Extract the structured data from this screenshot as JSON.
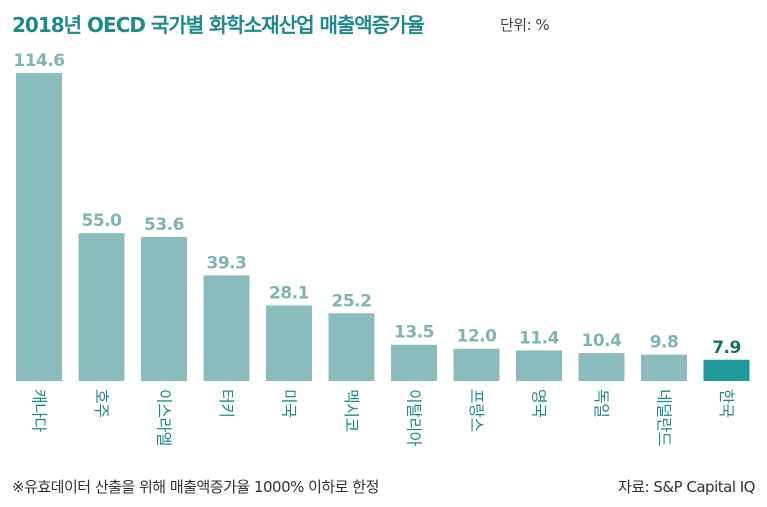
{
  "title": "2018년 OECD 국가별 화학소재산업 매출액증가율",
  "unit": "단위: %",
  "note": "※유효데이터 산출을 위해 매출액증가율 1000% 이하로 한정",
  "source": "자료: S&P Capital IQ",
  "colors": {
    "bar": "#8bbcbd",
    "bar_highlight": "#1f9999",
    "value_label": "#7fb3b4",
    "value_label_highlight": "#15706f",
    "title": "#1f8a8c",
    "category_label": "#1f8a8c"
  },
  "chart_data": {
    "type": "bar",
    "title": "2018년 OECD 국가별 화학소재산업 매출액증가율",
    "unit": "%",
    "categories": [
      "캐나다",
      "호주",
      "이스라엘",
      "터키",
      "미국",
      "멕시코",
      "이탈리아",
      "프랑스",
      "영국",
      "독일",
      "네덜란드",
      "한국"
    ],
    "values": [
      114.6,
      55.0,
      53.6,
      39.3,
      28.1,
      25.2,
      13.5,
      12.0,
      11.4,
      10.4,
      9.8,
      7.9
    ],
    "value_labels": [
      "114.6",
      "55.0",
      "53.6",
      "39.3",
      "28.1",
      "25.2",
      "13.5",
      "12.0",
      "11.4",
      "10.4",
      "9.8",
      "7.9"
    ],
    "highlight": "한국",
    "ylim": [
      0,
      114.6
    ],
    "grid": false,
    "legend": "none"
  }
}
